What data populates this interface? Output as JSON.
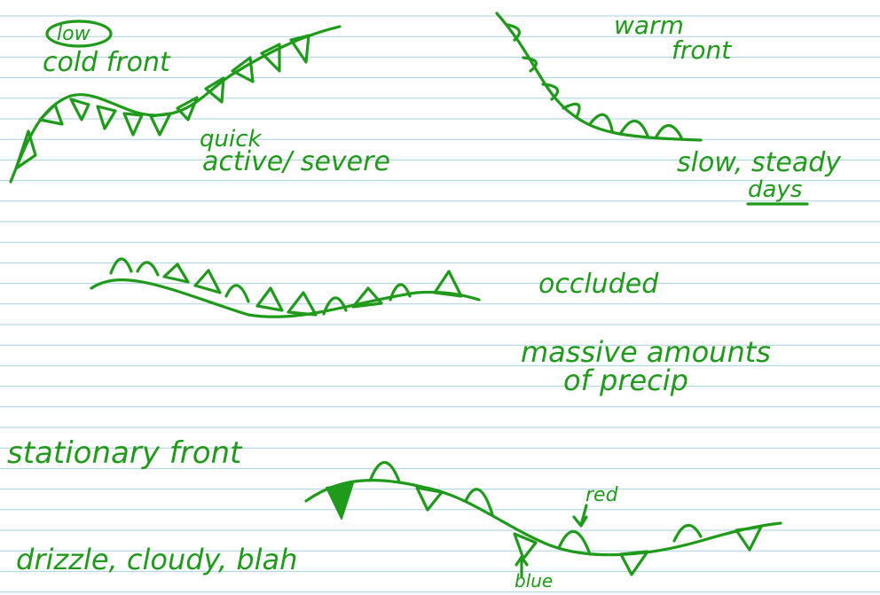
{
  "colors": {
    "ink": "#1f9a1a",
    "rule": "#a9cfe0",
    "paper": "#ffffff"
  },
  "notes": {
    "cold_front": {
      "scribble": "low",
      "label": "cold front",
      "desc_1": "quick",
      "desc_2": "active/ severe"
    },
    "warm_front": {
      "label_1": "warm",
      "label_2": "front",
      "desc_1": "slow, steady",
      "desc_2": "days"
    },
    "occluded": {
      "label": "occluded",
      "desc_1": "massive amounts",
      "desc_2": "of precip"
    },
    "stationary": {
      "label": "stationary front",
      "desc": "drizzle, cloudy, blah",
      "note_red": "red",
      "note_blue": "blue"
    }
  }
}
